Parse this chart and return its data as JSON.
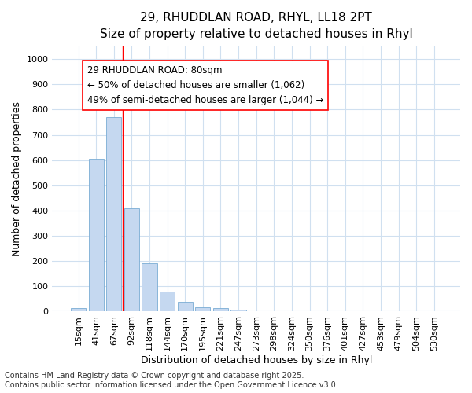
{
  "title_line1": "29, RHUDDLAN ROAD, RHYL, LL18 2PT",
  "title_line2": "Size of property relative to detached houses in Rhyl",
  "xlabel": "Distribution of detached houses by size in Rhyl",
  "ylabel": "Number of detached properties",
  "categories": [
    "15sqm",
    "41sqm",
    "67sqm",
    "92sqm",
    "118sqm",
    "144sqm",
    "170sqm",
    "195sqm",
    "221sqm",
    "247sqm",
    "273sqm",
    "298sqm",
    "324sqm",
    "350sqm",
    "376sqm",
    "401sqm",
    "427sqm",
    "453sqm",
    "479sqm",
    "504sqm",
    "530sqm"
  ],
  "values": [
    15,
    605,
    770,
    410,
    190,
    78,
    40,
    18,
    15,
    8,
    0,
    0,
    0,
    0,
    0,
    0,
    0,
    0,
    0,
    0,
    0
  ],
  "bar_color": "#c5d8f0",
  "bar_edge_color": "#7aacd4",
  "red_line_index": 2.5,
  "ylim": [
    0,
    1050
  ],
  "yticks": [
    0,
    100,
    200,
    300,
    400,
    500,
    600,
    700,
    800,
    900,
    1000
  ],
  "annotation_line1": "29 RHUDDLAN ROAD: 80sqm",
  "annotation_line2": "← 50% of detached houses are smaller (1,062)",
  "annotation_line3": "49% of semi-detached houses are larger (1,044) →",
  "footer_text": "Contains HM Land Registry data © Crown copyright and database right 2025.\nContains public sector information licensed under the Open Government Licence v3.0.",
  "background_color": "#ffffff",
  "grid_color": "#d0e0f0",
  "title_fontsize": 11,
  "subtitle_fontsize": 10,
  "axis_label_fontsize": 9,
  "tick_fontsize": 8,
  "annotation_fontsize": 8.5,
  "footer_fontsize": 7
}
